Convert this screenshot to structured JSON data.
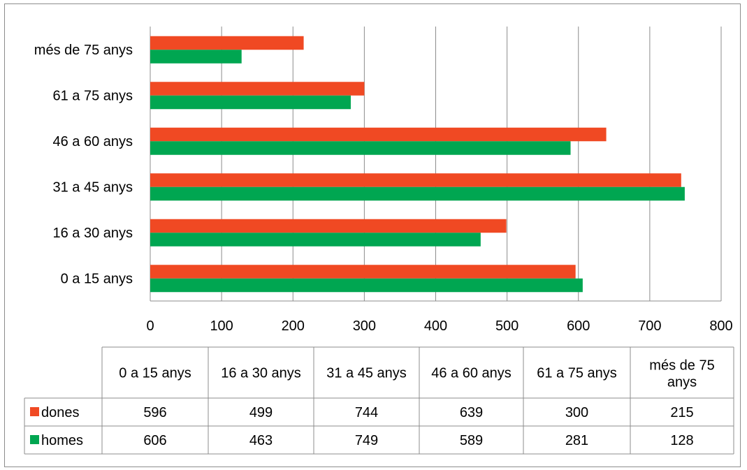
{
  "chart_data": {
    "type": "bar",
    "orientation": "horizontal",
    "categories": [
      "0 a 15 anys",
      "16 a 30 anys",
      "31 a 45 anys",
      "46 a 60 anys",
      "61 a 75 anys",
      "més de 75 anys"
    ],
    "table_headers": [
      "0 a 15 anys",
      "16 a 30 anys",
      "31 a 45 anys",
      "46 a 60 anys",
      "61 a 75 anys",
      "més de 75 anys"
    ],
    "series": [
      {
        "name": "dones",
        "color": "#f04923",
        "values": [
          596,
          499,
          744,
          639,
          300,
          215
        ]
      },
      {
        "name": "homes",
        "color": "#00a651",
        "values": [
          606,
          463,
          749,
          589,
          281,
          128
        ]
      }
    ],
    "xlim": [
      0,
      800
    ],
    "xticks": [
      0,
      100,
      200,
      300,
      400,
      500,
      600,
      700,
      800
    ],
    "grid": true,
    "legend": "data-table"
  }
}
